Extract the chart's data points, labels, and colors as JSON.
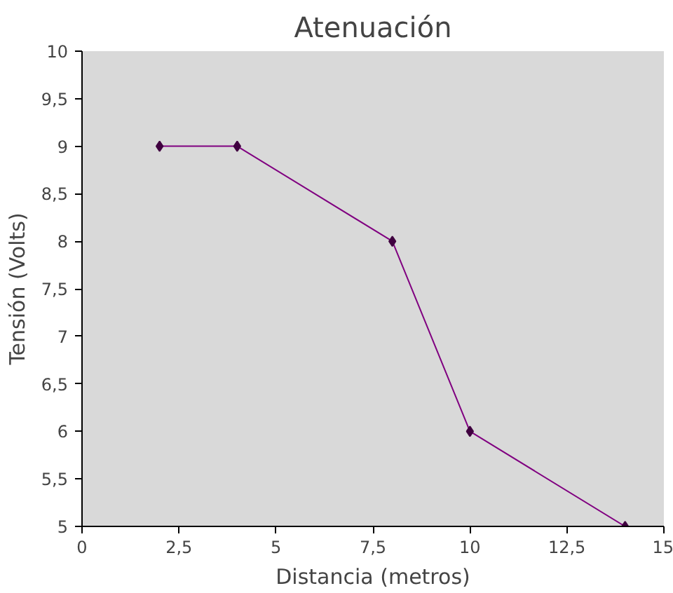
{
  "chart_data": {
    "type": "line",
    "title": "Atenuación",
    "xlabel": "Distancia (metros)",
    "ylabel": "Tensión (Volts)",
    "series": [
      {
        "color": "#800080",
        "x": [
          2,
          4,
          8,
          10,
          14
        ],
        "values": [
          9,
          9,
          8,
          6,
          5
        ]
      }
    ],
    "marker": "diamond",
    "line_style": "solid",
    "grid": false,
    "xlim": [
      0,
      15
    ],
    "xticks": [
      0,
      {
        "value": 2.5,
        "label": "2,5"
      },
      5,
      {
        "value": 7.5,
        "label": "7,5"
      },
      10,
      {
        "value": 12.5,
        "label": "12,5"
      },
      15
    ],
    "ylim": [
      5,
      10
    ],
    "yticks": [
      5,
      {
        "value": 5.5,
        "label": "5,5"
      },
      6,
      {
        "value": 6.5,
        "label": "6,5"
      },
      7,
      {
        "value": 7.5,
        "label": "7,5"
      },
      8,
      {
        "value": 8.5,
        "label": "8,5"
      },
      9,
      {
        "value": 9.5,
        "label": "9,5"
      },
      10
    ]
  }
}
